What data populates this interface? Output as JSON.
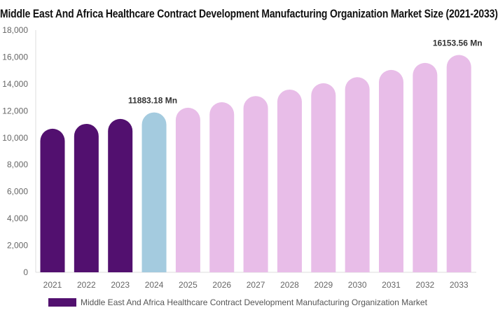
{
  "chart_data": {
    "type": "bar",
    "title": "Middle East And Africa Healthcare Contract Development Manufacturing Organization Market Size (2021-2033)",
    "categories": [
      "2021",
      "2022",
      "2023",
      "2024",
      "2025",
      "2026",
      "2027",
      "2028",
      "2029",
      "2030",
      "2031",
      "2032",
      "2033"
    ],
    "values": [
      10670,
      11030,
      11400,
      11883.18,
      12230,
      12640,
      13100,
      13580,
      14050,
      14500,
      15040,
      15560,
      16153.56
    ],
    "colors": [
      "#52106f",
      "#52106f",
      "#52106f",
      "#a4cbdf",
      "#e8bde8",
      "#e8bde8",
      "#e8bde8",
      "#e8bde8",
      "#e8bde8",
      "#e8bde8",
      "#e8bde8",
      "#e8bde8",
      "#e8bde8"
    ],
    "ylim": [
      0,
      18000
    ],
    "yticks": [
      "0",
      "2,000",
      "4,000",
      "6,000",
      "8,000",
      "10,000",
      "12,000",
      "14,000",
      "16,000",
      "18,000"
    ],
    "annotations": [
      {
        "category": "2024",
        "text": "11883.18 Mn"
      },
      {
        "category": "2033",
        "text": "16153.56 Mn"
      }
    ],
    "legend": {
      "name": "Middle East And Africa Healthcare Contract Development Manufacturing Organization Market",
      "color": "#52106f",
      "placement": "bottom"
    },
    "grid": false
  }
}
